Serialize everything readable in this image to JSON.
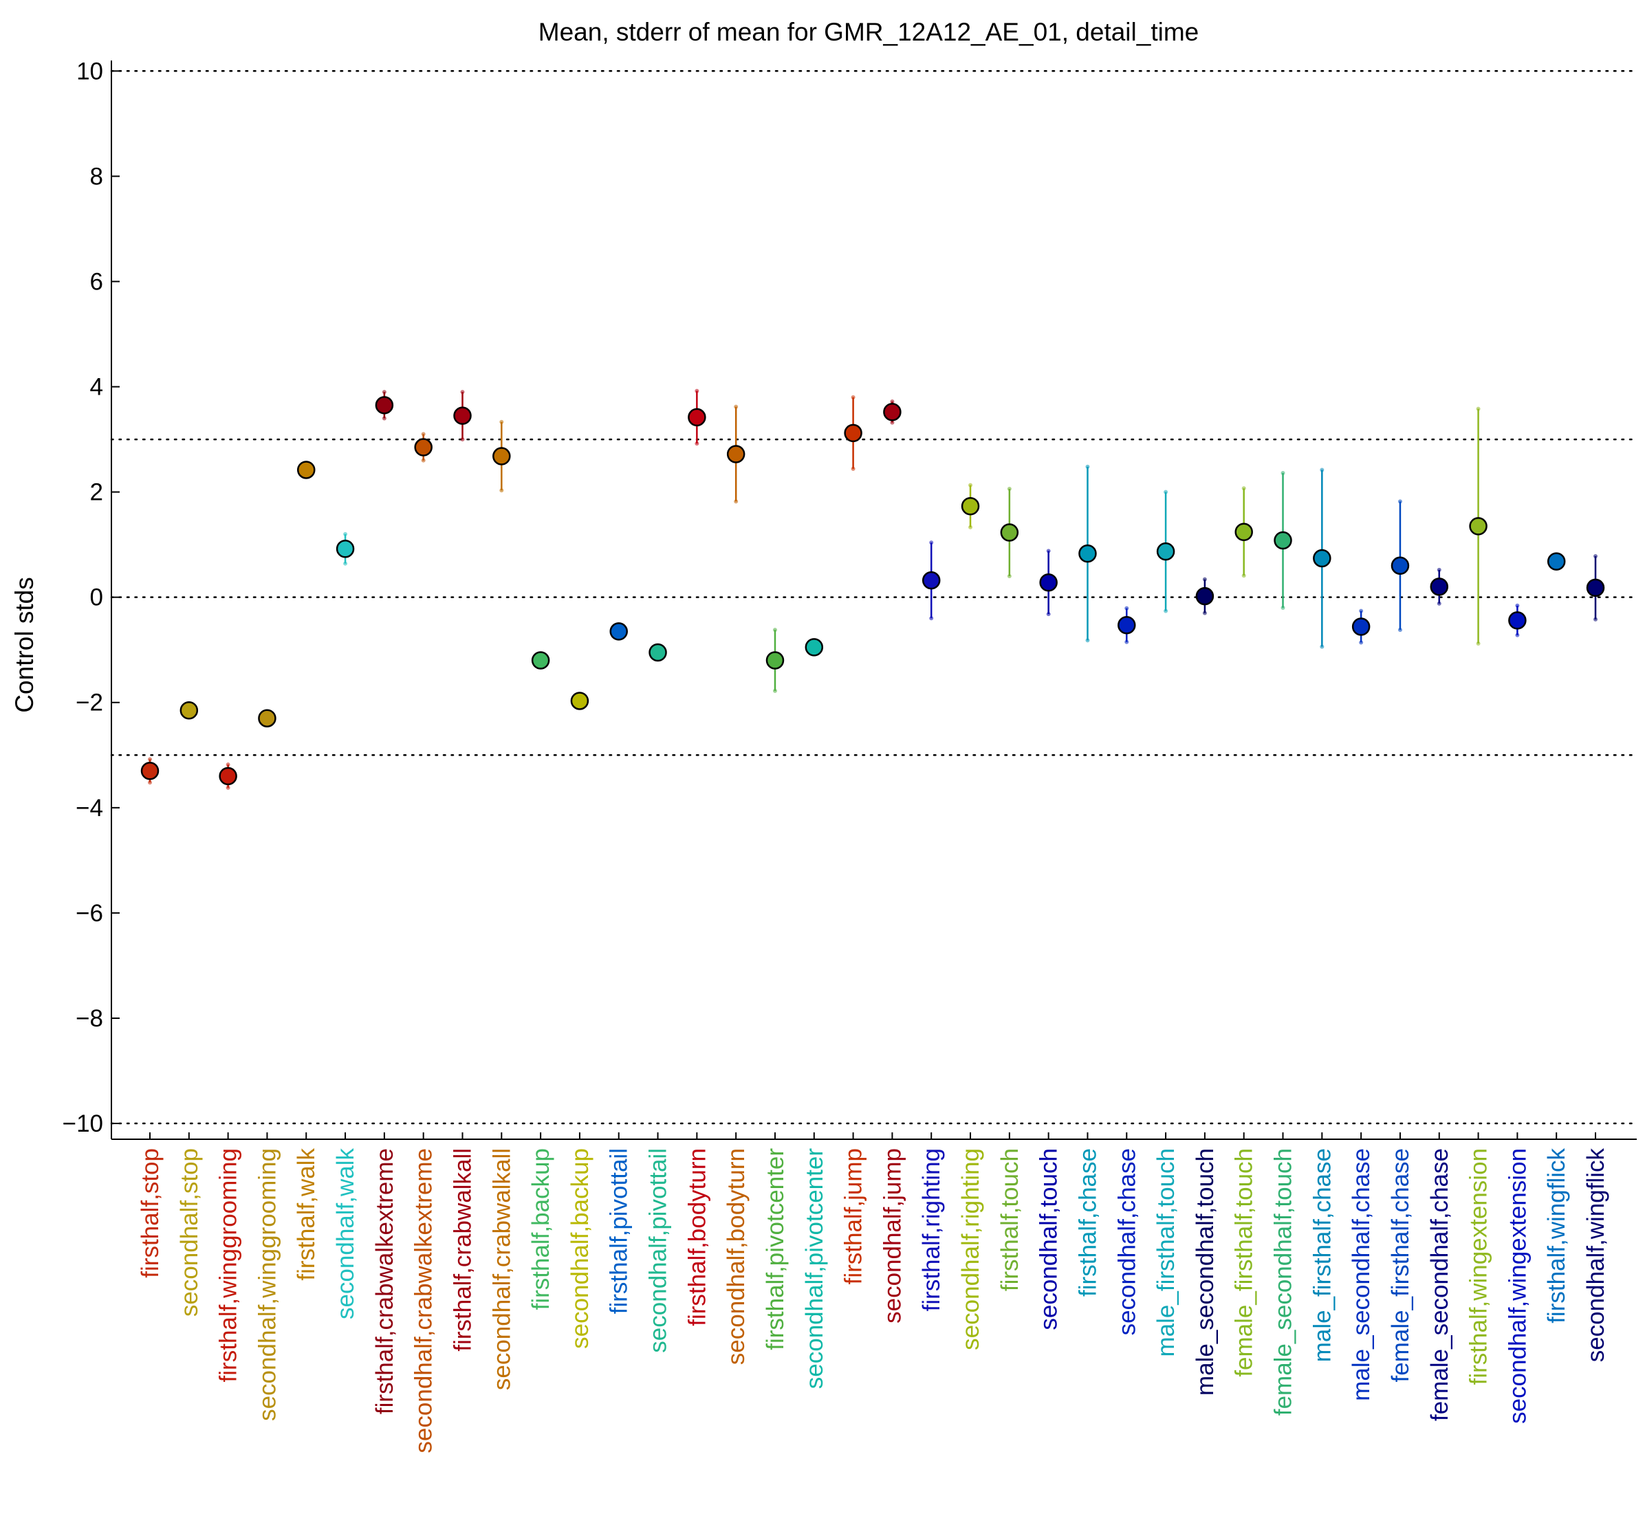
{
  "chart_data": {
    "type": "scatter",
    "title": "Mean, stderr of mean for GMR_12A12_AE_01, detail_time",
    "xlabel": "",
    "ylabel": "Control stds",
    "ylim": [
      -10.3,
      10.2
    ],
    "yticks": [
      -10,
      -8,
      -6,
      -4,
      -2,
      0,
      2,
      4,
      6,
      8,
      10
    ],
    "ytick_labels": [
      "−10",
      "−8",
      "−6",
      "−4",
      "−2",
      "0",
      "2",
      "4",
      "6",
      "8",
      "10"
    ],
    "reference_lines": [
      -10,
      -3,
      0,
      3,
      10
    ],
    "reference_line_style": "dotted",
    "grid": false,
    "legend": "none",
    "error_bars": "stderr of mean",
    "categories": [
      "firsthalf,stop",
      "secondhalf,stop",
      "firsthalf,winggrooming",
      "secondhalf,winggrooming",
      "firsthalf,walk",
      "secondhalf,walk",
      "firsthalf,crabwalkextreme",
      "secondhalf,crabwalkextreme",
      "firsthalf,crabwalkall",
      "secondhalf,crabwalkall",
      "firsthalf,backup",
      "secondhalf,backup",
      "firsthalf,pivottail",
      "secondhalf,pivottail",
      "firsthalf,bodyturn",
      "secondhalf,bodyturn",
      "firsthalf,pivotcenter",
      "secondhalf,pivotcenter",
      "firsthalf,jump",
      "secondhalf,jump",
      "firsthalf,righting",
      "secondhalf,righting",
      "firsthalf,touch",
      "secondhalf,touch",
      "firsthalf,chase",
      "secondhalf,chase",
      "male_firsthalf,touch",
      "male_secondhalf,touch",
      "female_firsthalf,touch",
      "female_secondhalf,touch",
      "male_firsthalf,chase",
      "male_secondhalf,chase",
      "female_firsthalf,chase",
      "female_secondhalf,chase",
      "firsthalf,wingextension",
      "secondhalf,wingextension",
      "firsthalf,wingflick",
      "secondhalf,wingflick"
    ],
    "values": [
      -3.3,
      -2.15,
      -3.4,
      -2.3,
      2.42,
      0.92,
      3.65,
      2.85,
      3.45,
      2.68,
      -1.2,
      -1.97,
      -0.65,
      -1.05,
      3.42,
      2.72,
      -1.2,
      -0.95,
      3.12,
      3.52,
      0.32,
      1.73,
      1.23,
      0.28,
      0.83,
      -0.53,
      0.87,
      0.02,
      1.24,
      1.08,
      0.74,
      -0.56,
      0.6,
      0.2,
      1.35,
      -0.44,
      0.68,
      0.18
    ],
    "errors": [
      0.22,
      0.1,
      0.22,
      0.1,
      0.1,
      0.28,
      0.25,
      0.25,
      0.45,
      0.65,
      0.1,
      0.1,
      0.1,
      0.1,
      0.5,
      0.9,
      0.58,
      0.1,
      0.68,
      0.2,
      0.72,
      0.4,
      0.83,
      0.6,
      1.65,
      0.32,
      1.13,
      0.32,
      0.83,
      1.28,
      1.68,
      0.3,
      1.22,
      0.32,
      2.23,
      0.28,
      0.1,
      0.6
    ],
    "colors": [
      "#c42a0a",
      "#b8a010",
      "#c41a0a",
      "#b89010",
      "#c08000",
      "#20c0c0",
      "#900010",
      "#c05000",
      "#a00010",
      "#c07000",
      "#40b860",
      "#b8b800",
      "#0060c8",
      "#20b890",
      "#c00010",
      "#c06000",
      "#50b040",
      "#10b8a8",
      "#c83000",
      "#a00010",
      "#1010b8",
      "#a0b810",
      "#70b030",
      "#0000a8",
      "#0098b8",
      "#0020c0",
      "#10a8b8",
      "#000060",
      "#88b820",
      "#30b070",
      "#0088b8",
      "#0030c0",
      "#0048c0",
      "#000080",
      "#90b820",
      "#0010c0",
      "#0070c0",
      "#000070"
    ]
  }
}
